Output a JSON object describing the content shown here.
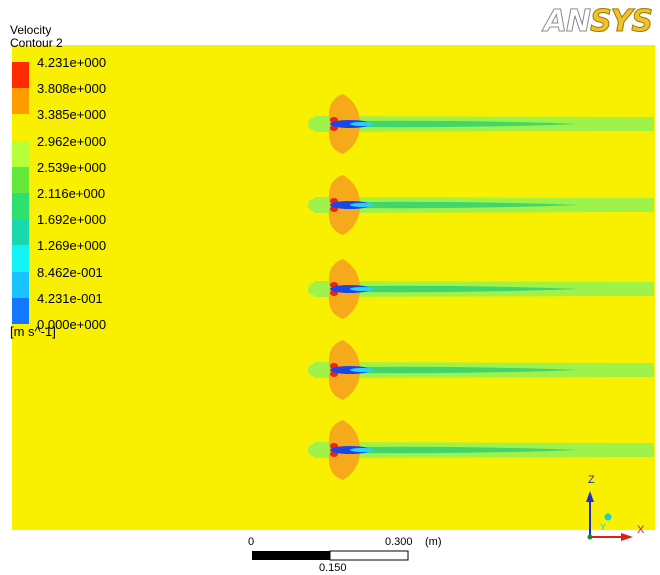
{
  "header": {
    "variable": "Velocity",
    "contour": "Contour 2",
    "logo_prefix": "AN",
    "logo_suffix": "SYS"
  },
  "legend": {
    "units": "[m s^-1]",
    "entries": [
      {
        "label": "4.231e+000",
        "color": "#ff2a00"
      },
      {
        "label": "3.808e+000",
        "color": "#ff9d00"
      },
      {
        "label": "3.385e+000",
        "color": "#f8f000"
      },
      {
        "label": "2.962e+000",
        "color": "#b8ff3a"
      },
      {
        "label": "2.539e+000",
        "color": "#63e83b"
      },
      {
        "label": "2.116e+000",
        "color": "#2ee06d"
      },
      {
        "label": "1.692e+000",
        "color": "#18d8ae"
      },
      {
        "label": "1.269e+000",
        "color": "#12f3f6"
      },
      {
        "label": "8.462e-001",
        "color": "#1ac3ff"
      },
      {
        "label": "4.231e-001",
        "color": "#1477ff"
      },
      {
        "label": "0.000e+000",
        "color": "#0b20f0"
      }
    ]
  },
  "contour": {
    "background_color": "#f8f000",
    "wake_color": "#9ef24a",
    "wake_core_color": "#42d56a",
    "blade_color": "#f6a91b",
    "stagnation_color": "#e8241c",
    "core_color": "#1a45e8",
    "rotor_count": 5
  },
  "scale_bar": {
    "start": "0",
    "end": "0.300",
    "unit": "(m)",
    "middle": "0.150"
  },
  "axes": {
    "z": "Z",
    "y": "Y",
    "x": "X"
  }
}
